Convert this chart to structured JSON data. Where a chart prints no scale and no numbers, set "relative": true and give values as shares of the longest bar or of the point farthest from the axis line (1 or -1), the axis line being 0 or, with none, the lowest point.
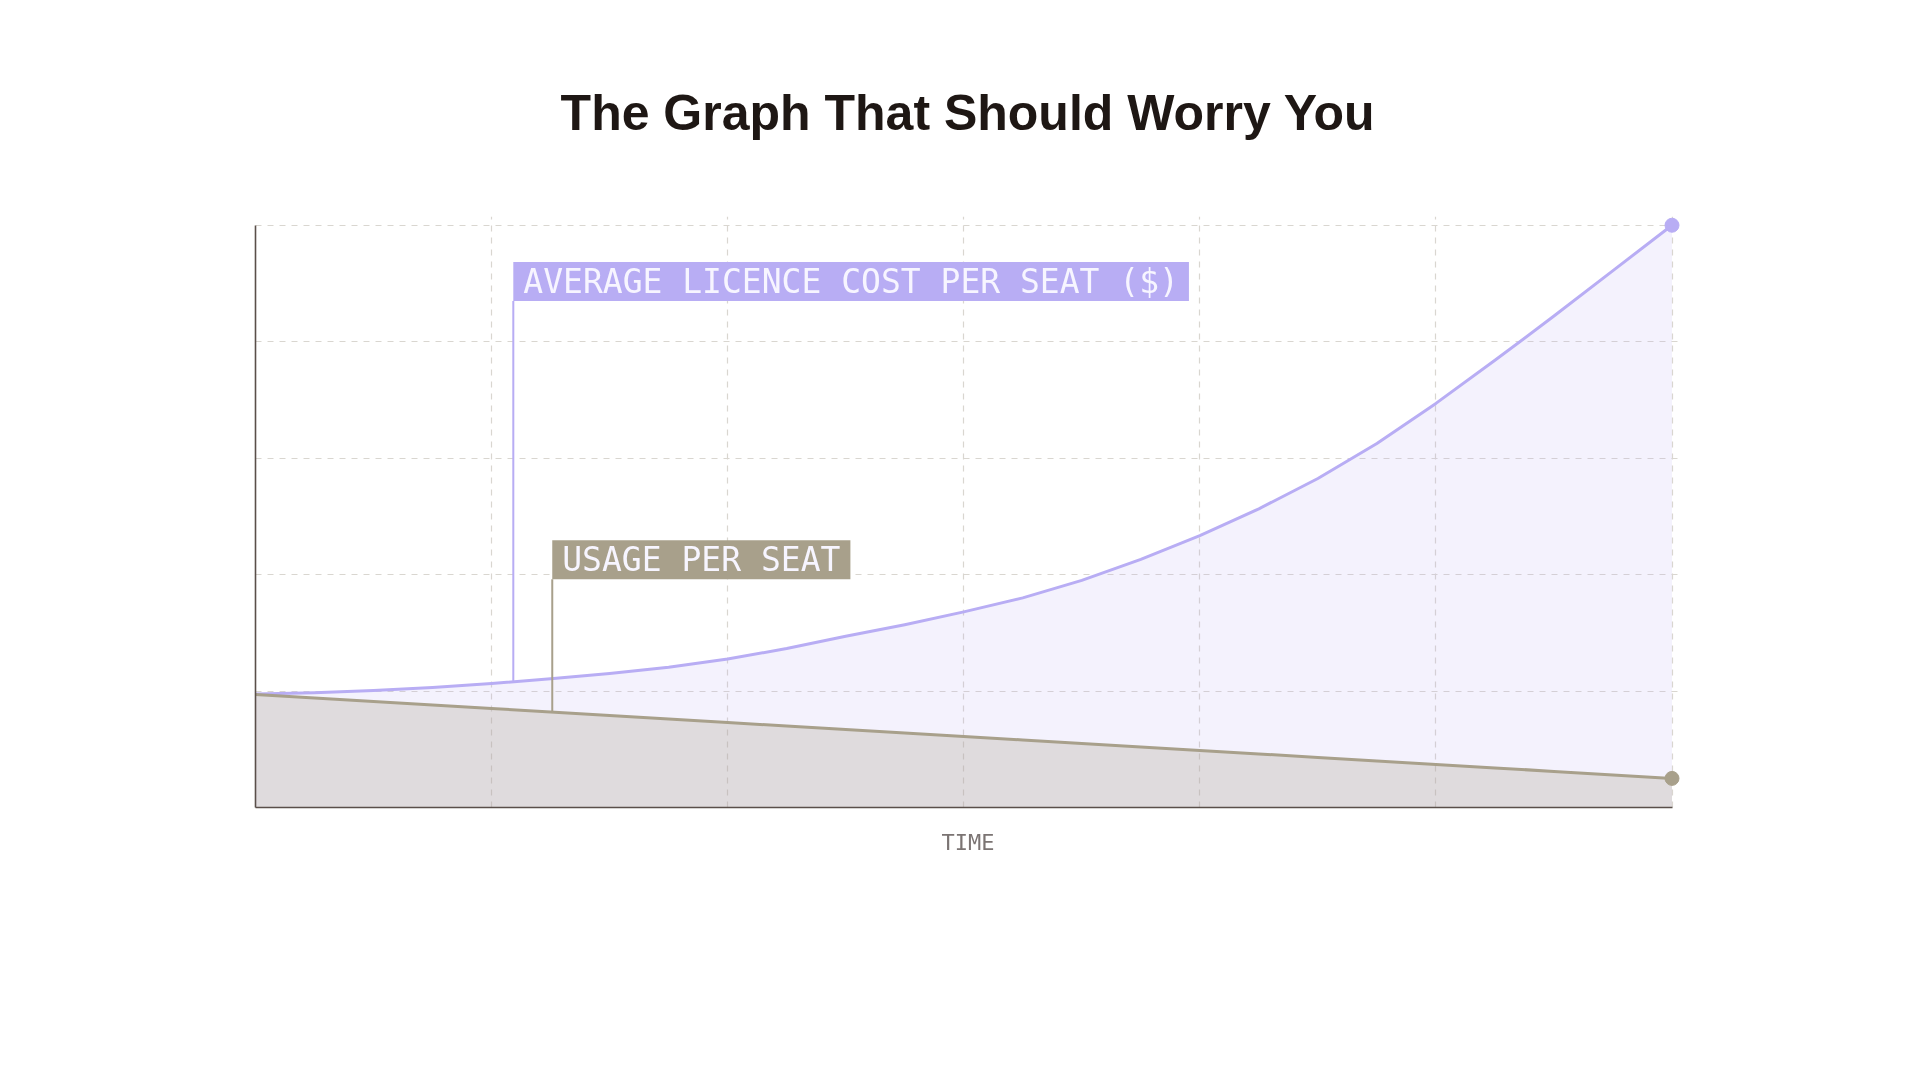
{
  "chart_data": {
    "type": "area",
    "title": "The Graph That Should Worry You",
    "xlabel": "TIME",
    "categories": [
      null,
      null,
      null,
      null,
      null,
      null,
      null,
      null,
      null,
      null,
      null,
      null,
      null,
      null,
      null,
      null,
      null,
      null,
      null,
      null,
      null,
      null,
      null,
      null,
      null
    ],
    "relative": true,
    "grid": true,
    "tick_labels": false,
    "series": [
      {
        "name": "AVERAGE LICENCE COST PER SEAT ($)",
        "color": "#b8adf4",
        "values": [
          0.195,
          0.197,
          0.201,
          0.206,
          0.213,
          0.221,
          0.23,
          0.241,
          0.255,
          0.273,
          0.294,
          0.314,
          0.336,
          0.36,
          0.39,
          0.426,
          0.467,
          0.513,
          0.565,
          0.625,
          0.694,
          0.768,
          0.844,
          0.922,
          1.0
        ]
      },
      {
        "name": "USAGE PER SEAT",
        "color": "#a8a08b",
        "values": [
          0.194,
          0.188,
          0.182,
          0.176,
          0.17,
          0.164,
          0.158,
          0.152,
          0.146,
          0.14,
          0.134,
          0.128,
          0.122,
          0.116,
          0.11,
          0.104,
          0.098,
          0.092,
          0.086,
          0.08,
          0.074,
          0.068,
          0.062,
          0.056,
          0.05
        ]
      }
    ]
  }
}
